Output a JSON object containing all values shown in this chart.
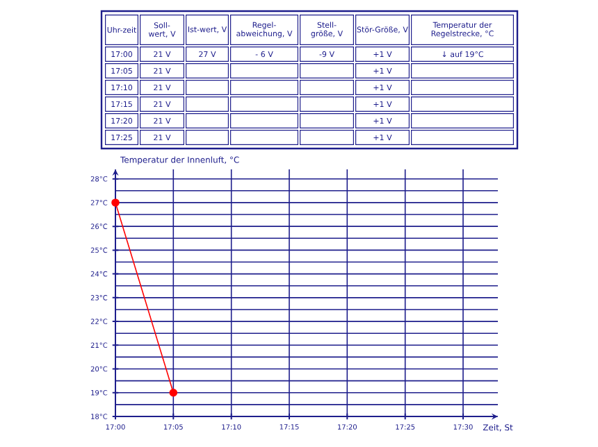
{
  "chart_data": {
    "type": "line",
    "ylabel": "Temperatur der Innenluft, °C",
    "xlabel": "Zeit, St",
    "x": [
      17,
      17.0833
    ],
    "series": [
      {
        "color": "#ff0000",
        "values": [
          27,
          19
        ]
      }
    ],
    "marker": "circle",
    "line_style": "solid",
    "grid": true,
    "xlim": [
      17,
      17.55
    ],
    "ylim": [
      18,
      28.4
    ],
    "xticks": [
      {
        "value": 17,
        "label": "17:00"
      },
      {
        "value": 17.0833,
        "label": "17:05"
      },
      {
        "value": 17.1667,
        "label": "17:10"
      },
      {
        "value": 17.25,
        "label": "17:15"
      },
      {
        "value": 17.3333,
        "label": "17:20"
      },
      {
        "value": 17.4167,
        "label": "17:25"
      },
      {
        "value": 17.5,
        "label": "17:30"
      }
    ],
    "yticks": [
      {
        "value": 18,
        "label": "18°C"
      },
      {
        "value": 19,
        "label": "19°C"
      },
      {
        "value": 20,
        "label": "20°C"
      },
      {
        "value": 21,
        "label": "21°C"
      },
      {
        "value": 22,
        "label": "22°C"
      },
      {
        "value": 23,
        "label": "23°C"
      },
      {
        "value": 24,
        "label": "24°C"
      },
      {
        "value": 25,
        "label": "25°C"
      },
      {
        "value": 26,
        "label": "26°C"
      },
      {
        "value": 27,
        "label": "27°C"
      },
      {
        "value": 28,
        "label": "28°C"
      }
    ],
    "annotations": [
      "Uhr-zeit",
      "Soll-wert, V",
      "Ist-wert, V",
      "Regel-abweichung, V",
      "Stell-größe, V",
      "Stör-Größe, V",
      "Temperatur der Regelstrecke, °C",
      "17:00",
      "21 V",
      "27 V",
      "- 6 V",
      "-9 V",
      "+1 V",
      "↓ auf 19°C",
      "17:05",
      "21 V",
      "+1 V",
      "17:10",
      "21 V",
      "+1 V",
      "17:15",
      "21 V",
      "+1 V",
      "17:20",
      "21 V",
      "+1 V",
      "17:25",
      "21 V",
      "+1 V"
    ]
  }
}
